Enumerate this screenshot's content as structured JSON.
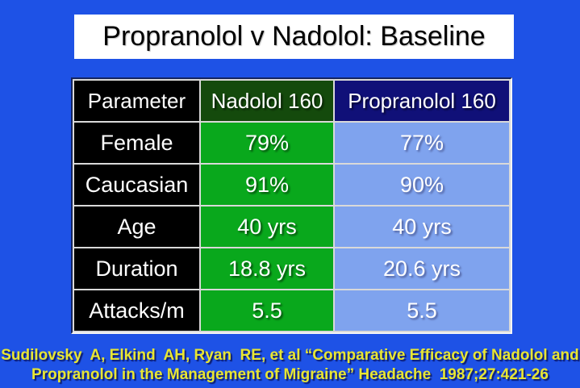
{
  "slide": {
    "title": "Propranolol v Nadolol: Baseline"
  },
  "table": {
    "columns": [
      "Parameter",
      "Nadolol 160",
      "Propranolol 160"
    ],
    "rows": [
      {
        "parameter": "Female",
        "nadolol": "79%",
        "propranolol": "77%"
      },
      {
        "parameter": "Caucasian",
        "nadolol": "91%",
        "propranolol": "90%"
      },
      {
        "parameter": "Age",
        "nadolol": "40 yrs",
        "propranolol": "40 yrs"
      },
      {
        "parameter": "Duration",
        "nadolol": "18.8 yrs",
        "propranolol": "20.6 yrs"
      },
      {
        "parameter": "Attacks/m",
        "nadolol": "5.5",
        "propranolol": "5.5"
      }
    ]
  },
  "citation": {
    "line1": "Sudilovsky  A, Elkind  AH, Ryan  RE, et al “Comparative Efficacy of Nadolol and",
    "line2": "Propranolol in the Management of Migraine” Headache  1987;27:421-26"
  },
  "colors": {
    "background": "#1e52e6",
    "title_box_bg": "#ffffff",
    "title_text": "#000000",
    "header_parameter_bg": "#000000",
    "header_nadolol_bg": "#144a0c",
    "header_propranolol_bg": "#101078",
    "row_label_bg": "#000000",
    "nadolol_cell_bg": "#09a81c",
    "propranolol_cell_bg": "#7fa3ee",
    "table_text": "#ffffff",
    "citation_text": "#e8e632",
    "gridline": "#d9d9d9"
  }
}
